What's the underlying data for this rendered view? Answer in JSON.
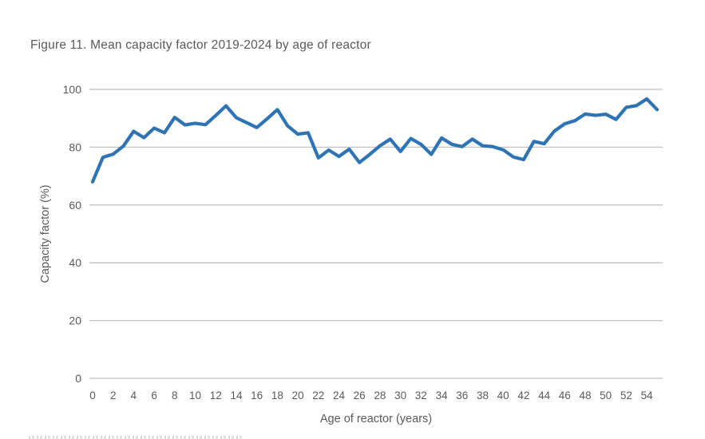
{
  "figure": {
    "title": "Figure 11. Mean capacity factor 2019-2024 by age of reactor"
  },
  "chart_data": {
    "type": "line",
    "title": "Figure 11. Mean capacity factor 2019-2024 by age of reactor",
    "xlabel": "Age of reactor (years)",
    "ylabel": "Capacity factor (%)",
    "x": [
      0,
      1,
      2,
      3,
      4,
      5,
      6,
      7,
      8,
      9,
      10,
      11,
      12,
      13,
      14,
      15,
      16,
      17,
      18,
      19,
      20,
      21,
      22,
      23,
      24,
      25,
      26,
      27,
      28,
      29,
      30,
      31,
      32,
      33,
      34,
      35,
      36,
      37,
      38,
      39,
      40,
      41,
      42,
      43,
      44,
      45,
      46,
      47,
      48,
      49,
      50,
      51,
      52,
      53,
      54,
      55
    ],
    "values": [
      68,
      76.5,
      77.6,
      80.4,
      85.5,
      83.3,
      86.6,
      85,
      90.3,
      87.7,
      88.3,
      87.8,
      91,
      94.3,
      90.2,
      88.5,
      86.8,
      89.8,
      93,
      87.4,
      84.5,
      85,
      76.3,
      79,
      76.8,
      79.3,
      74.7,
      77.5,
      80.5,
      82.8,
      78.5,
      83,
      81,
      77.5,
      83.2,
      81,
      80.2,
      82.8,
      80.5,
      80.2,
      79.1,
      76.6,
      75.7,
      82,
      81.2,
      85.6,
      88.1,
      89.2,
      91.5,
      91,
      91.4,
      89.6,
      93.8,
      94.4,
      96.7,
      93
    ],
    "xlim": [
      0,
      55
    ],
    "ylim": [
      0,
      100
    ],
    "xticks": [
      0,
      2,
      4,
      6,
      8,
      10,
      12,
      14,
      16,
      18,
      20,
      22,
      24,
      26,
      28,
      30,
      32,
      34,
      36,
      38,
      40,
      42,
      44,
      46,
      48,
      50,
      52,
      54
    ],
    "yticks": [
      0,
      20,
      40,
      60,
      80,
      100
    ],
    "grid": "horizontal",
    "legend": "none",
    "line_color": "#2E74B5",
    "grid_color": "#C2C2C2",
    "text_color": "#595959"
  }
}
